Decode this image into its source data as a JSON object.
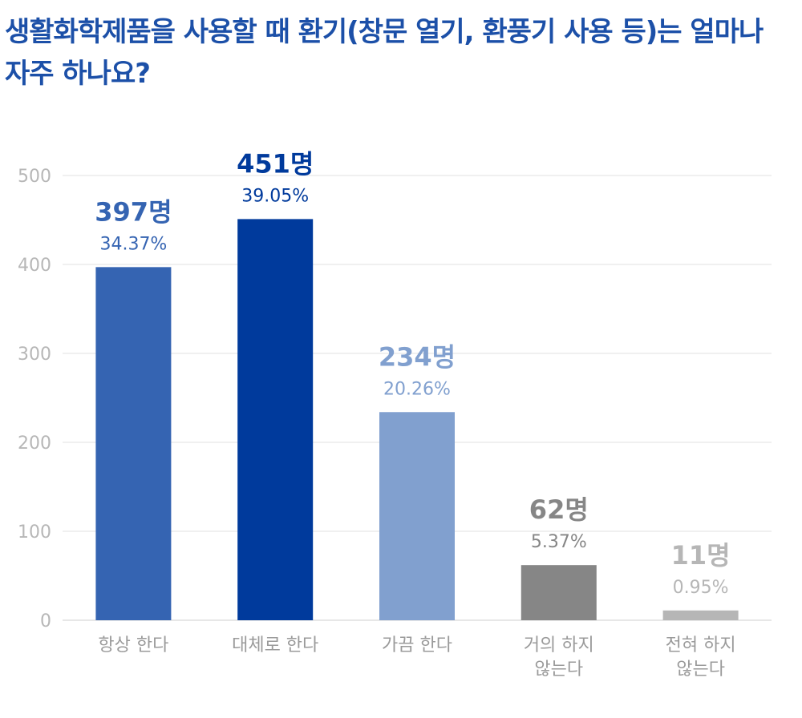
{
  "chart_data": {
    "type": "bar",
    "title": "생활화학제품을 사용할 때 환기(창문 열기, 환풍기 사용 등)는 얼마나 자주 하나요?",
    "categories": [
      [
        "항상 한다"
      ],
      [
        "대체로 한다"
      ],
      [
        "가끔 한다"
      ],
      [
        "거의 하지",
        "않는다"
      ],
      [
        "전혀 하지",
        "않는다"
      ]
    ],
    "values": [
      397,
      451,
      234,
      62,
      11
    ],
    "value_labels": [
      "397명",
      "451명",
      "234명",
      "62명",
      "11명"
    ],
    "percent_labels": [
      "34.37%",
      "39.05%",
      "20.26%",
      "5.37%",
      "0.95%"
    ],
    "colors": [
      "#3564b2",
      "#003a9c",
      "#81a0cf",
      "#868686",
      "#b6b6b6"
    ],
    "ylim": [
      0,
      500
    ],
    "yticks": [
      0,
      100,
      200,
      300,
      400,
      500
    ],
    "grid": true,
    "legend": "none"
  }
}
